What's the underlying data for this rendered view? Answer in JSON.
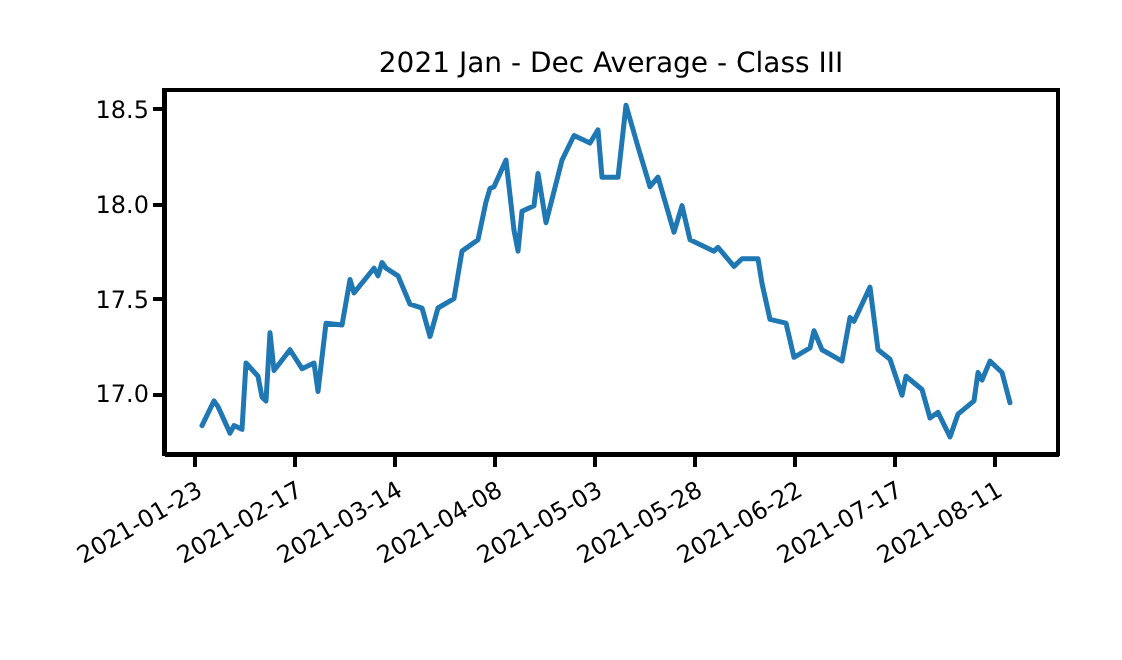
{
  "chart_data": {
    "type": "line",
    "title": "2021 Jan - Dec Average - Class III",
    "x": [
      "2021-01-25",
      "2021-01-28",
      "2021-01-29",
      "2021-02-01",
      "2021-02-02",
      "2021-02-04",
      "2021-02-05",
      "2021-02-08",
      "2021-02-09",
      "2021-02-10",
      "2021-02-11",
      "2021-02-12",
      "2021-02-16",
      "2021-02-19",
      "2021-02-22",
      "2021-02-23",
      "2021-02-25",
      "2021-03-01",
      "2021-03-03",
      "2021-03-04",
      "2021-03-09",
      "2021-03-10",
      "2021-03-11",
      "2021-03-12",
      "2021-03-15",
      "2021-03-18",
      "2021-03-21",
      "2021-03-23",
      "2021-03-25",
      "2021-03-29",
      "2021-03-31",
      "2021-04-04",
      "2021-04-06",
      "2021-04-07",
      "2021-04-08",
      "2021-04-11",
      "2021-04-13",
      "2021-04-14",
      "2021-04-15",
      "2021-04-18",
      "2021-04-19",
      "2021-04-21",
      "2021-04-25",
      "2021-04-28",
      "2021-05-02",
      "2021-05-04",
      "2021-05-05",
      "2021-05-09",
      "2021-05-11",
      "2021-05-14",
      "2021-05-17",
      "2021-05-19",
      "2021-05-23",
      "2021-05-25",
      "2021-05-27",
      "2021-06-02",
      "2021-06-03",
      "2021-06-07",
      "2021-06-09",
      "2021-06-13",
      "2021-06-14",
      "2021-06-16",
      "2021-06-20",
      "2021-06-22",
      "2021-06-26",
      "2021-06-27",
      "2021-06-29",
      "2021-07-04",
      "2021-07-06",
      "2021-07-07",
      "2021-07-11",
      "2021-07-13",
      "2021-07-16",
      "2021-07-19",
      "2021-07-20",
      "2021-07-24",
      "2021-07-26",
      "2021-07-28",
      "2021-07-31",
      "2021-08-02",
      "2021-08-06",
      "2021-08-07",
      "2021-08-08",
      "2021-08-10",
      "2021-08-13",
      "2021-08-15"
    ],
    "series": [
      {
        "color": "#1f77b4",
        "values": [
          16.83,
          16.96,
          16.93,
          16.79,
          16.83,
          16.81,
          17.16,
          17.09,
          16.98,
          16.96,
          17.32,
          17.12,
          17.23,
          17.13,
          17.16,
          17.01,
          17.37,
          17.36,
          17.6,
          17.53,
          17.66,
          17.62,
          17.69,
          17.66,
          17.62,
          17.47,
          17.45,
          17.3,
          17.45,
          17.5,
          17.75,
          17.81,
          18.01,
          18.08,
          18.09,
          18.23,
          17.86,
          17.75,
          17.96,
          17.99,
          18.16,
          17.9,
          18.23,
          18.36,
          18.32,
          18.39,
          18.14,
          18.14,
          18.52,
          18.3,
          18.09,
          18.14,
          17.85,
          17.99,
          17.81,
          17.75,
          17.77,
          17.67,
          17.71,
          17.71,
          17.58,
          17.39,
          17.37,
          17.19,
          17.24,
          17.33,
          17.23,
          17.17,
          17.4,
          17.38,
          17.56,
          17.23,
          17.18,
          16.99,
          17.09,
          17.02,
          16.87,
          16.9,
          16.77,
          16.89,
          16.96,
          17.11,
          17.07,
          17.17,
          17.11,
          16.95
        ]
      }
    ],
    "xlim": [
      "2021-01-15T12:00",
      "2021-08-27"
    ],
    "xticks": [
      "2021-01-23",
      "2021-02-17",
      "2021-03-14",
      "2021-04-08",
      "2021-05-03",
      "2021-05-28",
      "2021-06-22",
      "2021-07-17",
      "2021-08-11"
    ],
    "ylim": [
      16.68,
      18.6
    ],
    "yticks": [
      {
        "value": 17,
        "label": "17.0"
      },
      {
        "value": 17.5,
        "label": "17.5"
      },
      {
        "value": 18,
        "label": "18.0"
      },
      {
        "value": 18.5,
        "label": "18.5"
      }
    ],
    "grid": false,
    "line_style": "solid",
    "marker": "none"
  }
}
